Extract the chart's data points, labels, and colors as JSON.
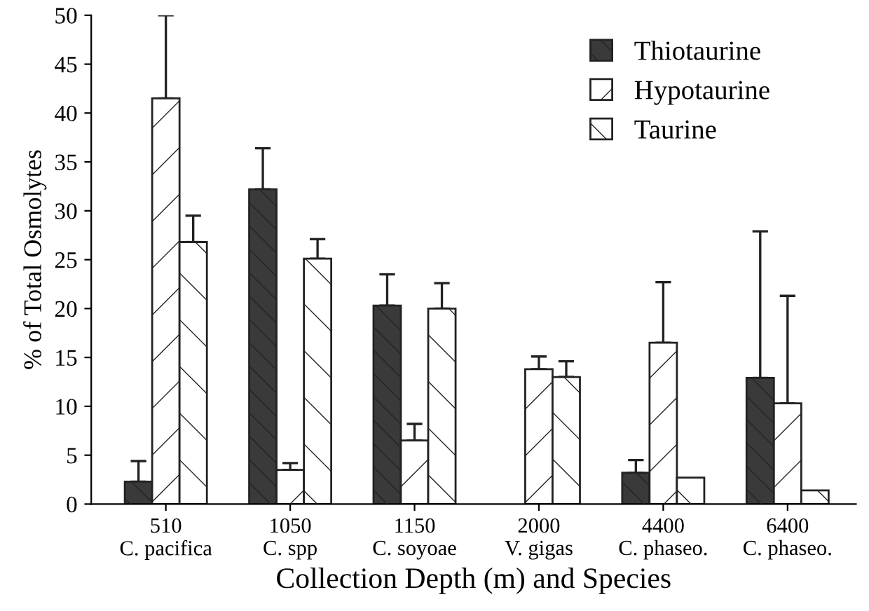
{
  "chart_data": {
    "type": "bar",
    "xlabel": "Collection Depth (m) and Species",
    "ylabel": "% of Total Osmolytes",
    "categories": [
      "510\nC. pacifica",
      "1050\nC. spp",
      "1150\nC. soyoae",
      "2000\nV. gigas",
      "4400\nC. phaseo.",
      "6400\nC. phaseo."
    ],
    "series": [
      {
        "name": "Thiotaurine",
        "color": "#3a3a3a",
        "values": [
          2.3,
          32.2,
          20.3,
          null,
          3.2,
          12.9
        ],
        "errors": [
          [
            2.3,
            4.4
          ],
          [
            32.2,
            36.4
          ],
          [
            20.3,
            23.5
          ],
          null,
          [
            3.2,
            4.5
          ],
          [
            12.9,
            27.9
          ]
        ]
      },
      {
        "name": "Hypotaurine",
        "color": "#ffffff",
        "values": [
          41.5,
          3.5,
          6.5,
          13.8,
          16.5,
          10.3
        ],
        "errors": [
          [
            41.5,
            50.0
          ],
          [
            3.5,
            4.2
          ],
          [
            6.5,
            8.2
          ],
          [
            13.8,
            15.1
          ],
          [
            16.5,
            22.7
          ],
          [
            10.3,
            21.3
          ]
        ]
      },
      {
        "name": "Taurine",
        "color": "#ffffff",
        "values": [
          26.8,
          25.1,
          20.0,
          13.0,
          2.7,
          1.4
        ],
        "errors": [
          [
            26.8,
            29.5
          ],
          [
            25.1,
            27.1
          ],
          [
            20.0,
            22.6
          ],
          [
            13.0,
            14.6
          ],
          null,
          null
        ]
      }
    ],
    "ylim": [
      0,
      50
    ],
    "yticks": [
      0,
      5,
      10,
      15,
      20,
      25,
      30,
      35,
      40,
      45,
      50
    ],
    "grid": false,
    "legend": "top right"
  }
}
